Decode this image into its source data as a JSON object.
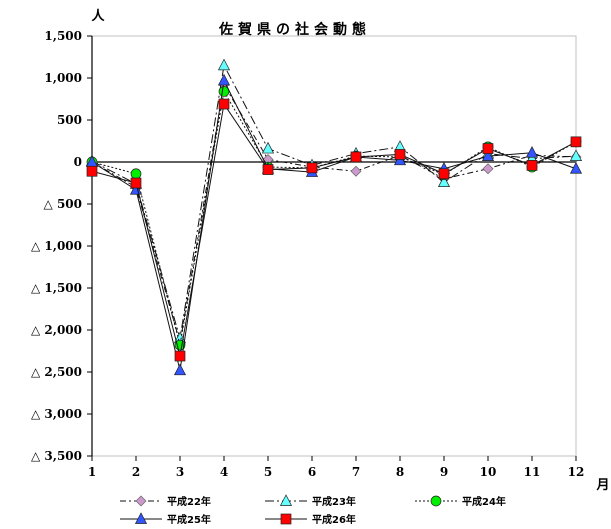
{
  "chart_data": {
    "type": "line",
    "title": "佐賀県の社会動態",
    "ylabel": "人",
    "xlabel": "月",
    "x": [
      1,
      2,
      3,
      4,
      5,
      6,
      7,
      8,
      9,
      10,
      11,
      12
    ],
    "xtick_labels": [
      "1",
      "2",
      "3",
      "4",
      "5",
      "6",
      "7",
      "8",
      "9",
      "10",
      "11",
      "12"
    ],
    "ylim": [
      -3500,
      1500
    ],
    "yticks": [
      1500,
      1000,
      500,
      0,
      -500,
      -1000,
      -1500,
      -2000,
      -2500,
      -3000,
      -3500
    ],
    "ytick_labels": [
      "1,500",
      "1,000",
      "500",
      "0",
      "△ 500",
      "△ 1,000",
      "△ 1,500",
      "△ 2,000",
      "△ 2,500",
      "△ 3,000",
      "△ 3,500"
    ],
    "grid": false,
    "legend_position": "bottom",
    "series": [
      {
        "name": "平成22年",
        "values": [
          0,
          -300,
          -2150,
          920,
          30,
          -60,
          -110,
          80,
          -200,
          -80,
          80,
          60
        ],
        "color": "#cc99cc",
        "marker": "diamond",
        "line_style": "dash-dot"
      },
      {
        "name": "平成23年",
        "values": [
          10,
          -260,
          -2100,
          1150,
          160,
          -40,
          100,
          180,
          -240,
          100,
          40,
          70
        ],
        "color": "#66ffff",
        "marker": "triangle",
        "line_style": "dash-dot-long"
      },
      {
        "name": "平成24年",
        "values": [
          0,
          -140,
          -2180,
          840,
          -60,
          -70,
          70,
          60,
          -150,
          180,
          -60,
          240
        ],
        "color": "#00ee00",
        "marker": "circle",
        "line_style": "dotted"
      },
      {
        "name": "平成25年",
        "values": [
          0,
          -330,
          -2480,
          970,
          -80,
          -120,
          60,
          20,
          -80,
          70,
          110,
          -80
        ],
        "color": "#3355ff",
        "marker": "triangle",
        "line_style": "solid"
      },
      {
        "name": "平成26年",
        "values": [
          -110,
          -250,
          -2310,
          690,
          -90,
          -70,
          60,
          90,
          -140,
          160,
          -40,
          240
        ],
        "color": "#ff0000",
        "marker": "square",
        "line_style": "solid"
      }
    ]
  }
}
